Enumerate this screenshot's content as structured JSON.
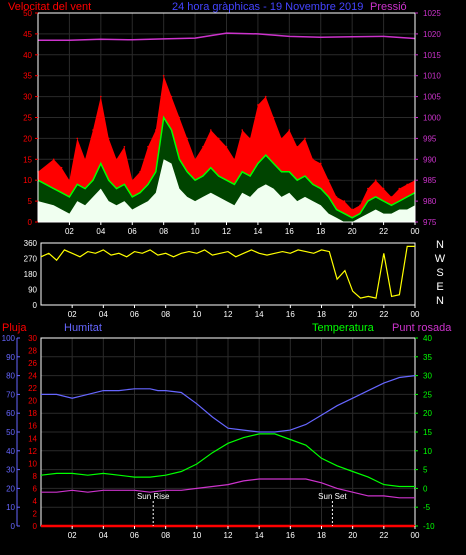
{
  "header": {
    "wind_label": "Velocitat del vent",
    "title": "24 hora gràphicas - 19 Novembre 2019",
    "pressure_label": "Pressió"
  },
  "labels": {
    "rain": "Pluja",
    "humidity": "Humitat",
    "temperature": "Temperatura",
    "dewpoint": "Punt rosada",
    "sunrise": "Sun Rise",
    "sunset": "Sun Set"
  },
  "colors": {
    "background": "#000000",
    "axis": "#ffffff",
    "wind_gust": "#ff0000",
    "wind_avg": "#00ff00",
    "wind_low": "#f0fff0",
    "pressure": "#cc33cc",
    "direction": "#ffff00",
    "rain": "#ff0000",
    "humidity": "#6666ff",
    "temperature": "#00ff00",
    "dewpoint": "#cc33cc",
    "grid": "#2a2a2a"
  },
  "chart_data": [
    {
      "type": "area",
      "title": "Velocitat del vent",
      "x_ticks": [
        "02",
        "04",
        "06",
        "08",
        "10",
        "12",
        "14",
        "16",
        "18",
        "20",
        "22",
        "00"
      ],
      "x_range_hours": [
        0,
        24
      ],
      "y_left": {
        "label": "Velocitat del vent",
        "range": [
          0,
          50
        ],
        "ticks": [
          0,
          5,
          10,
          15,
          20,
          25,
          30,
          35,
          40,
          45,
          50
        ]
      },
      "y_right": {
        "label": "Pressió",
        "range": [
          975,
          1025
        ],
        "ticks": [
          975,
          980,
          985,
          990,
          995,
          1000,
          1005,
          1010,
          1015,
          1020,
          1025
        ]
      },
      "grid": true,
      "series": [
        {
          "name": "gust",
          "x": [
            0,
            1,
            1.5,
            2,
            2.5,
            3,
            3.5,
            4,
            4.5,
            5,
            5.5,
            6,
            6.5,
            7,
            7.5,
            8,
            8.5,
            9,
            9.5,
            10,
            10.5,
            11,
            11.5,
            12,
            12.5,
            13,
            13.5,
            14,
            14.5,
            15,
            15.5,
            16,
            16.5,
            17,
            17.5,
            18,
            18.5,
            19,
            19.5,
            20,
            20.5,
            21,
            21.5,
            22,
            22.5,
            23,
            23.5,
            24
          ],
          "y": [
            12,
            15,
            13,
            10,
            20,
            15,
            22,
            30,
            20,
            15,
            18,
            10,
            12,
            18,
            22,
            35,
            30,
            25,
            20,
            15,
            18,
            22,
            20,
            18,
            15,
            22,
            20,
            28,
            30,
            25,
            20,
            22,
            18,
            20,
            15,
            14,
            10,
            6,
            5,
            3,
            4,
            8,
            10,
            8,
            6,
            8,
            9,
            10
          ]
        },
        {
          "name": "average",
          "x": [
            0,
            1,
            1.5,
            2,
            2.5,
            3,
            3.5,
            4,
            4.5,
            5,
            5.5,
            6,
            6.5,
            7,
            7.5,
            8,
            8.5,
            9,
            9.5,
            10,
            10.5,
            11,
            11.5,
            12,
            12.5,
            13,
            13.5,
            14,
            14.5,
            15,
            15.5,
            16,
            16.5,
            17,
            17.5,
            18,
            18.5,
            19,
            19.5,
            20,
            20.5,
            21,
            21.5,
            22,
            22.5,
            23,
            23.5,
            24
          ],
          "y": [
            10,
            8,
            7,
            6,
            9,
            8,
            10,
            14,
            10,
            8,
            9,
            6,
            7,
            9,
            12,
            25,
            22,
            15,
            12,
            10,
            11,
            13,
            11,
            10,
            9,
            12,
            11,
            14,
            16,
            14,
            12,
            12,
            10,
            11,
            9,
            8,
            6,
            3,
            2,
            1,
            2,
            5,
            6,
            5,
            4,
            5,
            6,
            7
          ]
        },
        {
          "name": "low",
          "x": [
            0,
            1,
            1.5,
            2,
            2.5,
            3,
            3.5,
            4,
            4.5,
            5,
            5.5,
            6,
            6.5,
            7,
            7.5,
            8,
            8.5,
            9,
            9.5,
            10,
            10.5,
            11,
            11.5,
            12,
            12.5,
            13,
            13.5,
            14,
            14.5,
            15,
            15.5,
            16,
            16.5,
            17,
            17.5,
            18,
            18.5,
            19,
            19.5,
            20,
            20.5,
            21,
            21.5,
            22,
            22.5,
            23,
            23.5,
            24
          ],
          "y": [
            5,
            4,
            3,
            2,
            5,
            4,
            6,
            8,
            5,
            4,
            5,
            3,
            4,
            5,
            7,
            15,
            14,
            8,
            6,
            5,
            6,
            7,
            6,
            5,
            4,
            7,
            6,
            8,
            9,
            8,
            6,
            7,
            5,
            6,
            5,
            4,
            2,
            1,
            0,
            0,
            1,
            2,
            3,
            2,
            2,
            3,
            3,
            4
          ]
        },
        {
          "name": "Pressió",
          "x": [
            0,
            2,
            4,
            6,
            8,
            10,
            12,
            14,
            16,
            18,
            20,
            22,
            24
          ],
          "y": [
            1018.5,
            1018.5,
            1018.7,
            1018.6,
            1018.8,
            1019.0,
            1020.2,
            1020.0,
            1019.4,
            1019.2,
            1019.3,
            1019.4,
            1018.9
          ]
        }
      ]
    },
    {
      "type": "line",
      "title": "",
      "x_ticks": [
        "02",
        "04",
        "06",
        "08",
        "10",
        "12",
        "14",
        "16",
        "18",
        "20",
        "22",
        "00"
      ],
      "y_left": {
        "range": [
          0,
          360
        ],
        "ticks": [
          0,
          90,
          180,
          270,
          360
        ]
      },
      "y_right_labels": [
        "N",
        "W",
        "S",
        "E",
        "N"
      ],
      "series": [
        {
          "name": "direction",
          "x": [
            0,
            0.5,
            1,
            1.5,
            2,
            2.5,
            3,
            3.5,
            4,
            4.5,
            5,
            5.5,
            6,
            6.5,
            7,
            7.5,
            8,
            8.5,
            9,
            9.5,
            10,
            10.5,
            11,
            11.5,
            12,
            12.5,
            13,
            13.5,
            14,
            14.5,
            15,
            15.5,
            16,
            16.5,
            17,
            17.5,
            18,
            18.5,
            19,
            19.5,
            20,
            20.5,
            21,
            21.5,
            22,
            22.5,
            23,
            23.5,
            24
          ],
          "y": [
            280,
            300,
            260,
            320,
            300,
            280,
            310,
            300,
            320,
            290,
            300,
            280,
            310,
            300,
            320,
            290,
            300,
            280,
            300,
            310,
            300,
            320,
            290,
            300,
            310,
            280,
            300,
            320,
            300,
            290,
            300,
            310,
            300,
            320,
            310,
            300,
            320,
            310,
            150,
            200,
            80,
            40,
            50,
            40,
            300,
            50,
            60,
            340,
            340
          ]
        }
      ]
    },
    {
      "type": "line",
      "title": "",
      "x_ticks": [
        "02",
        "04",
        "06",
        "08",
        "10",
        "12",
        "14",
        "16",
        "18",
        "20",
        "22",
        "00"
      ],
      "axes_left": [
        {
          "label": "Pluja",
          "range": [
            0,
            30
          ],
          "ticks": [
            0,
            2,
            4,
            6,
            8,
            10,
            12,
            14,
            16,
            18,
            20,
            22,
            24,
            26,
            28,
            30
          ]
        },
        {
          "label": "Humitat",
          "range": [
            0,
            100
          ],
          "ticks": [
            0,
            10,
            20,
            30,
            40,
            50,
            60,
            70,
            80,
            90,
            100
          ]
        }
      ],
      "axis_right": {
        "label": "Temperatura / Punt rosada",
        "range": [
          -10,
          40
        ],
        "ticks": [
          -10,
          -5,
          0,
          5,
          10,
          15,
          20,
          25,
          30,
          35,
          40
        ]
      },
      "annotations": [
        {
          "text": "Sun Rise",
          "x": 7.2
        },
        {
          "text": "Sun Set",
          "x": 18.7
        }
      ],
      "series": [
        {
          "name": "Pluja",
          "x": [
            0,
            24
          ],
          "y": [
            0,
            0
          ]
        },
        {
          "name": "Humitat",
          "x": [
            0,
            1,
            2,
            3,
            4,
            5,
            6,
            7,
            7.5,
            8,
            9,
            10,
            11,
            12,
            13,
            14,
            15,
            16,
            17,
            18,
            19,
            20,
            21,
            22,
            23,
            24
          ],
          "y": [
            70,
            70,
            68,
            70,
            72,
            72,
            73,
            73,
            72,
            72,
            71,
            65,
            58,
            52,
            51,
            50,
            50,
            51,
            54,
            59,
            64,
            68,
            72,
            76,
            79,
            80
          ]
        },
        {
          "name": "Temperatura",
          "x": [
            0,
            1,
            2,
            3,
            4,
            5,
            6,
            7,
            8,
            9,
            10,
            11,
            12,
            13,
            14,
            15,
            16,
            17,
            18,
            19,
            20,
            21,
            22,
            23,
            24
          ],
          "y": [
            3.5,
            4,
            4,
            3.5,
            4,
            3.5,
            3,
            3,
            3.5,
            4.5,
            6.5,
            9.5,
            12,
            13.5,
            14.5,
            14.5,
            13,
            11.5,
            8,
            6,
            4.5,
            3,
            1,
            0.5,
            0.5
          ]
        },
        {
          "name": "Punt rosada",
          "x": [
            0,
            1,
            2,
            3,
            4,
            5,
            6,
            7,
            8,
            9,
            10,
            11,
            12,
            13,
            14,
            15,
            16,
            17,
            18,
            19,
            20,
            21,
            22,
            23,
            24
          ],
          "y": [
            -1,
            -1,
            -0.5,
            -1,
            -0.5,
            -0.5,
            -0.5,
            -1,
            -0.5,
            -0.5,
            0,
            0.5,
            1,
            2,
            2.5,
            2.5,
            2.5,
            2.5,
            1.5,
            0,
            -1,
            -2,
            -2,
            -2.5,
            -2.5
          ]
        }
      ]
    }
  ]
}
